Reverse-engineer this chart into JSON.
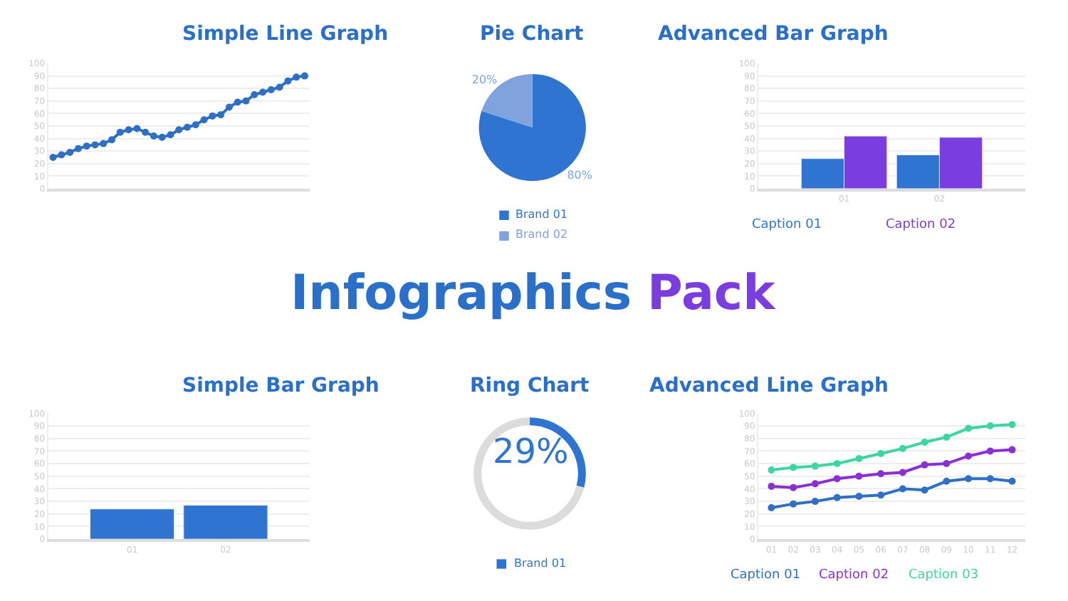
{
  "chart_data": [
    {
      "type": "line",
      "title": "Simple Line Graph",
      "categories": [
        null,
        null,
        null,
        null,
        null,
        null,
        null,
        null,
        null,
        null,
        null,
        null,
        null,
        null,
        null,
        null,
        null,
        null,
        null,
        null,
        null,
        null,
        null,
        null,
        null,
        null,
        null,
        null,
        null,
        null,
        null
      ],
      "series": [
        {
          "color": "#2f6fc6",
          "values": [
            25,
            27,
            29,
            32,
            34,
            35,
            36,
            39,
            45,
            47,
            48,
            45,
            42,
            41,
            43,
            47,
            49,
            51,
            55,
            58,
            59,
            65,
            69,
            70,
            75,
            77,
            79,
            81,
            86,
            89,
            90
          ]
        }
      ],
      "ylim": [
        0,
        100
      ],
      "yticks": [
        0,
        10,
        20,
        30,
        40,
        50,
        60,
        70,
        80,
        90,
        100
      ],
      "grid": "y",
      "marker": "circle",
      "line_style": "solid"
    },
    {
      "type": "pie",
      "title": "Pie Chart",
      "categories": [
        "Brand 01",
        "Brand 02"
      ],
      "values": [
        80,
        20
      ],
      "colors": [
        "#2f74d0",
        "#7fa3dc"
      ],
      "value_labels": [
        "80%",
        "20%"
      ],
      "legend": "bottom"
    },
    {
      "type": "bar",
      "title": "Advanced Bar Graph",
      "categories": [
        "01",
        "02"
      ],
      "series": [
        {
          "name": "Caption 01",
          "color": "#2f74d0",
          "values": [
            24,
            27
          ]
        },
        {
          "name": "Caption 02",
          "color": "#7a3de0",
          "values": [
            42,
            41
          ]
        }
      ],
      "ylim": [
        0,
        100
      ],
      "yticks": [
        0,
        10,
        20,
        30,
        40,
        50,
        60,
        70,
        80,
        90,
        100
      ],
      "grid": "y",
      "legend": "bottom"
    },
    {
      "type": "other",
      "annotations": [
        "Infographics",
        "Pack"
      ],
      "colors": [
        "#2a6fc9",
        "#7a3de0"
      ]
    },
    {
      "type": "bar",
      "title": "Simple Bar Graph",
      "categories": [
        "01",
        "02"
      ],
      "series": [
        {
          "color": "#2f74d0",
          "values": [
            24,
            27
          ]
        }
      ],
      "ylim": [
        0,
        100
      ],
      "yticks": [
        0,
        10,
        20,
        30,
        40,
        50,
        60,
        70,
        80,
        90,
        100
      ],
      "grid": "y"
    },
    {
      "type": "donut",
      "title": "Ring Chart",
      "categories": [
        "Brand 01",
        null
      ],
      "values": [
        29,
        71
      ],
      "colors": [
        "#2f74d0",
        "#dcdcdc"
      ],
      "annotations": [
        "29%"
      ],
      "legend": "bottom"
    },
    {
      "type": "line",
      "title": "Advanced Line Graph",
      "categories": [
        "01",
        "02",
        "03",
        "04",
        "05",
        "06",
        "07",
        "08",
        "09",
        "10",
        "11",
        "12"
      ],
      "series": [
        {
          "name": "Caption 01",
          "color": "#2f6fc6",
          "values": [
            25,
            28,
            30,
            33,
            34,
            35,
            40,
            39,
            46,
            48,
            48,
            46
          ]
        },
        {
          "name": "Caption 02",
          "color": "#8a2fd6",
          "values": [
            42,
            41,
            44,
            48,
            50,
            52,
            53,
            59,
            60,
            66,
            70,
            71
          ]
        },
        {
          "name": "Caption 03",
          "color": "#3ed6a0",
          "values": [
            55,
            57,
            58,
            60,
            64,
            68,
            72,
            77,
            81,
            88,
            90,
            91
          ]
        }
      ],
      "ylim": [
        0,
        100
      ],
      "yticks": [
        0,
        10,
        20,
        30,
        40,
        50,
        60,
        70,
        80,
        90,
        100
      ],
      "grid": "y",
      "marker": "circle",
      "line_style": "solid",
      "legend": "bottom"
    }
  ]
}
